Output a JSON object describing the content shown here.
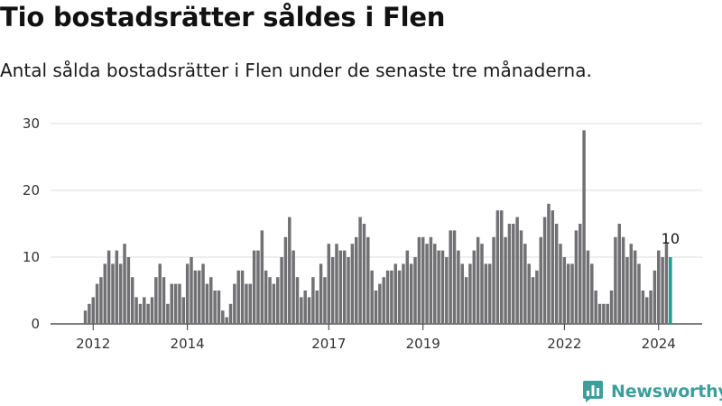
{
  "title": "Tio bostadsrätter såldes i Flen",
  "subtitle": "Antal sålda bostadsrätter i Flen under de senaste tre månaderna.",
  "brand": {
    "name": "Newsworthy",
    "icon": "newsworthy-logo-icon",
    "color": "#3d9e9c"
  },
  "colors": {
    "bar": "#717073",
    "highlight": "#1e9b93",
    "grid": "#dddddd"
  },
  "chart_data": {
    "type": "bar",
    "title": "",
    "xlabel": "",
    "ylabel": "",
    "ylim": [
      0,
      30
    ],
    "y_ticks": [
      0,
      10,
      20,
      30
    ],
    "x_tick_labels": [
      "2012",
      "2014",
      "2017",
      "2019",
      "2022",
      "2024"
    ],
    "start": "2011-10",
    "frequency": "monthly",
    "grid": true,
    "legend": "none",
    "values": [
      0,
      2,
      3,
      4,
      6,
      7,
      9,
      11,
      9,
      11,
      9,
      12,
      10,
      7,
      4,
      3,
      4,
      3,
      4,
      7,
      9,
      7,
      3,
      6,
      6,
      6,
      4,
      9,
      10,
      8,
      8,
      9,
      6,
      7,
      5,
      5,
      2,
      1,
      3,
      6,
      8,
      8,
      6,
      6,
      11,
      11,
      14,
      8,
      7,
      6,
      7,
      10,
      13,
      16,
      11,
      7,
      4,
      5,
      4,
      7,
      5,
      9,
      7,
      12,
      10,
      12,
      11,
      11,
      10,
      12,
      13,
      16,
      15,
      13,
      8,
      5,
      6,
      7,
      8,
      8,
      9,
      8,
      9,
      11,
      9,
      10,
      13,
      13,
      12,
      13,
      12,
      11,
      11,
      10,
      14,
      14,
      11,
      9,
      7,
      9,
      11,
      13,
      12,
      9,
      9,
      13,
      17,
      17,
      13,
      15,
      15,
      16,
      14,
      12,
      9,
      7,
      8,
      13,
      16,
      18,
      17,
      15,
      12,
      10,
      9,
      9,
      14,
      15,
      29,
      11,
      9,
      5,
      3,
      3,
      3,
      5,
      13,
      15,
      13,
      10,
      12,
      11,
      9,
      5,
      4,
      5,
      8,
      11,
      10,
      12,
      10
    ],
    "highlight": {
      "label": "10",
      "value": 10
    }
  }
}
